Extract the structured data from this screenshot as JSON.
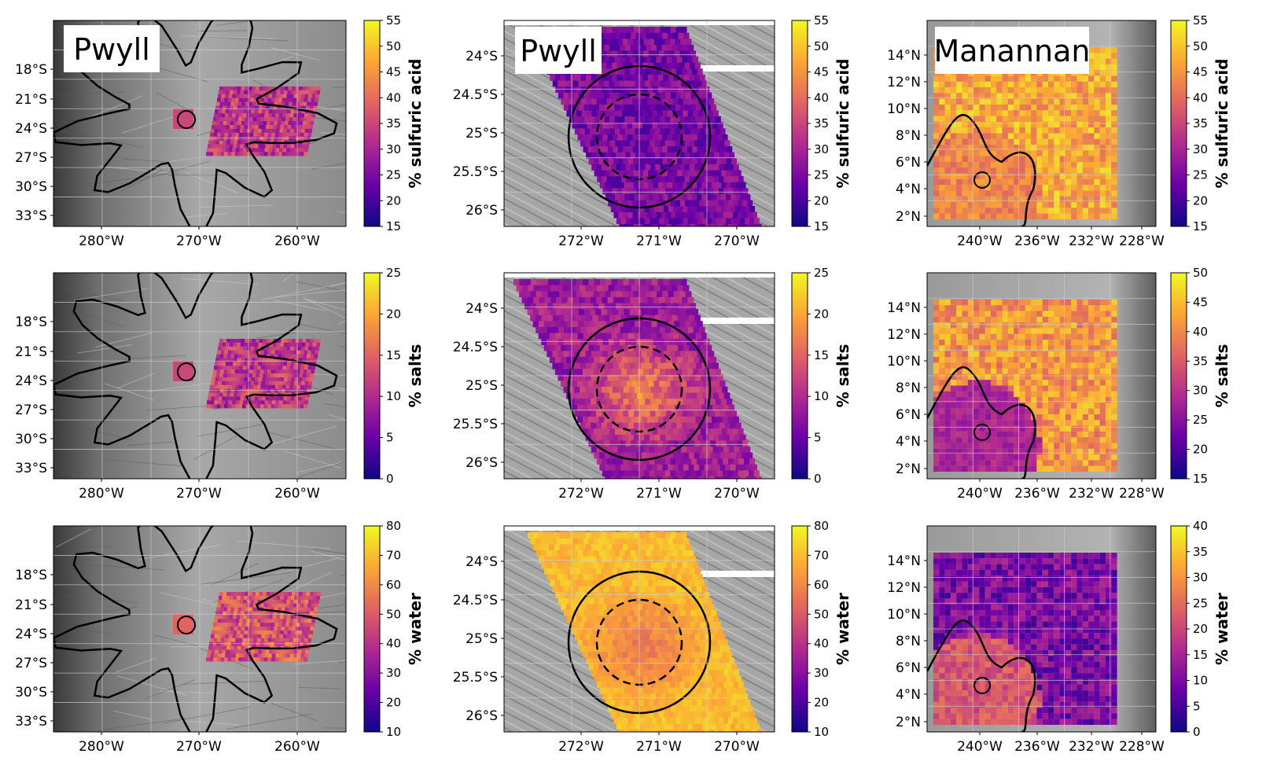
{
  "rows": [
    {
      "quantity": "% sulfuric acid"
    },
    {
      "quantity": "% salts"
    },
    {
      "quantity": "% water"
    }
  ],
  "columns": [
    {
      "region": "Pwyll wide",
      "panel_label": "Pwyll",
      "x_ticks": [
        "280°W",
        "270°W",
        "260°W"
      ],
      "y_ticks": [
        "18°S",
        "21°S",
        "24°S",
        "27°S",
        "30°S",
        "33°S"
      ]
    },
    {
      "region": "Pwyll close",
      "panel_label": "Pwyll",
      "x_ticks": [
        "272°W",
        "271°W",
        "270°W"
      ],
      "y_ticks": [
        "24°S",
        "24.5°S",
        "25°S",
        "25.5°S",
        "26°S"
      ]
    },
    {
      "region": "Manannan",
      "panel_label": "Manannan",
      "x_ticks": [
        "240°W",
        "236°W",
        "232°W",
        "228°W"
      ],
      "y_ticks": [
        "14°N",
        "12°N",
        "10°N",
        "8°N",
        "6°N",
        "4°N",
        "2°N"
      ]
    }
  ],
  "colorbars": [
    [
      {
        "ticks": [
          "55",
          "50",
          "45",
          "40",
          "35",
          "30",
          "25",
          "20",
          "15"
        ],
        "min": 15,
        "max": 55
      },
      {
        "ticks": [
          "55",
          "50",
          "45",
          "40",
          "35",
          "30",
          "25",
          "20",
          "15"
        ],
        "min": 15,
        "max": 55
      },
      {
        "ticks": [
          "55",
          "50",
          "45",
          "40",
          "35",
          "30",
          "25",
          "20",
          "15"
        ],
        "min": 15,
        "max": 55
      }
    ],
    [
      {
        "ticks": [
          "25",
          "20",
          "15",
          "10",
          "5",
          "0"
        ],
        "min": 0,
        "max": 25
      },
      {
        "ticks": [
          "25",
          "20",
          "15",
          "10",
          "5",
          "0"
        ],
        "min": 0,
        "max": 25
      },
      {
        "ticks": [
          "50",
          "45",
          "40",
          "35",
          "30",
          "25",
          "20",
          "15"
        ],
        "min": 15,
        "max": 50
      }
    ],
    [
      {
        "ticks": [
          "80",
          "70",
          "60",
          "50",
          "40",
          "30",
          "20",
          "10"
        ],
        "min": 10,
        "max": 80
      },
      {
        "ticks": [
          "80",
          "70",
          "60",
          "50",
          "40",
          "30",
          "20",
          "10"
        ],
        "min": 10,
        "max": 80
      },
      {
        "ticks": [
          "40",
          "35",
          "30",
          "25",
          "20",
          "15",
          "10",
          "5",
          "0"
        ],
        "min": 0,
        "max": 40
      }
    ]
  ],
  "colormap": [
    "#0d0887",
    "#6a00a8",
    "#b12a90",
    "#e16462",
    "#fca636",
    "#f0f921"
  ],
  "map_fill_level": [
    [
      0.45,
      0.25,
      0.8
    ],
    [
      0.45,
      0.5,
      0.75
    ],
    [
      0.55,
      0.75,
      0.25
    ]
  ]
}
